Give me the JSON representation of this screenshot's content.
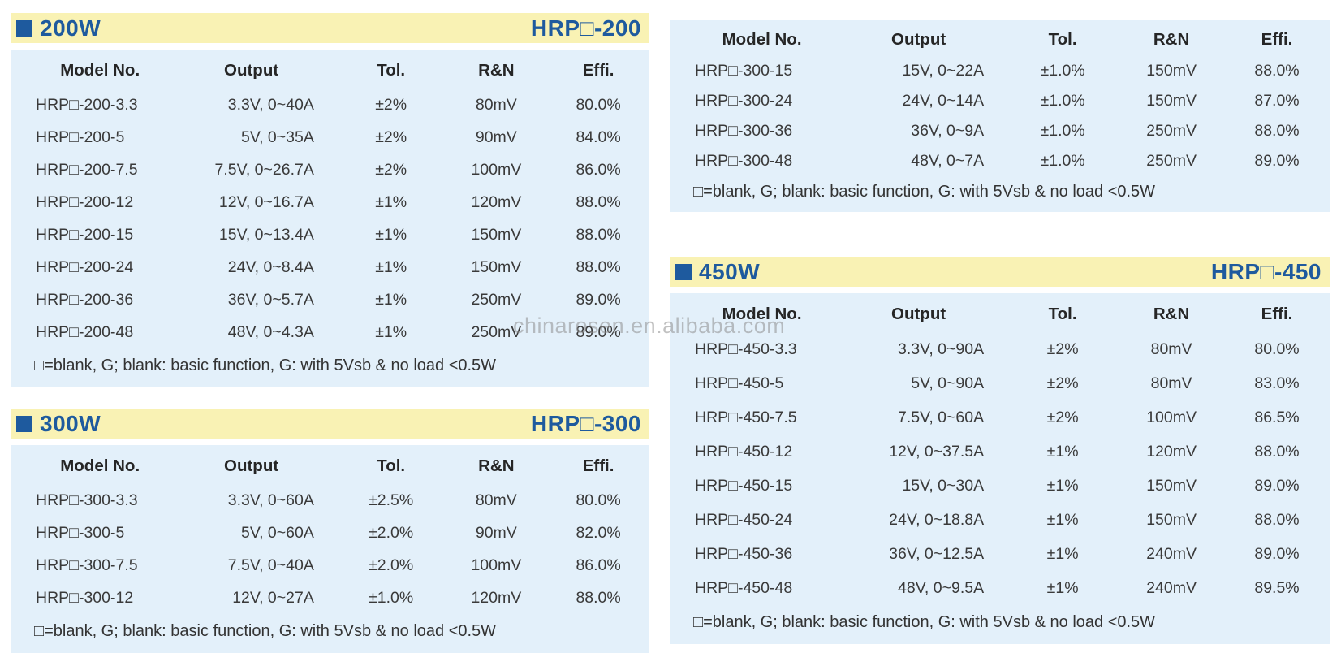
{
  "watermark": "chinarosen.en.alibaba.com",
  "colors": {
    "banner_background": "#f9f2b4",
    "banner_accent_blue": "#1e5a9e",
    "table_background": "#e3f0fa",
    "table_text": "#3a3a3a",
    "page_background": "#ffffff"
  },
  "columns": [
    "Model No.",
    "Output",
    "Tol.",
    "R&N",
    "Effi."
  ],
  "footnote": "□=blank, G;  blank: basic function, G: with 5Vsb & no load <0.5W",
  "tables": [
    {
      "banner": {
        "wattage": "200W",
        "series": "HRP□-200"
      },
      "rows": [
        [
          "HRP□-200-3.3",
          "3.3V, 0~40A",
          "±2%",
          "80mV",
          "80.0%"
        ],
        [
          "HRP□-200-5",
          "5V, 0~35A",
          "±2%",
          "90mV",
          "84.0%"
        ],
        [
          "HRP□-200-7.5",
          "7.5V, 0~26.7A",
          "±2%",
          "100mV",
          "86.0%"
        ],
        [
          "HRP□-200-12",
          "12V, 0~16.7A",
          "±1%",
          "120mV",
          "88.0%"
        ],
        [
          "HRP□-200-15",
          "15V, 0~13.4A",
          "±1%",
          "150mV",
          "88.0%"
        ],
        [
          "HRP□-200-24",
          "24V, 0~8.4A",
          "±1%",
          "150mV",
          "88.0%"
        ],
        [
          "HRP□-200-36",
          "36V, 0~5.7A",
          "±1%",
          "250mV",
          "89.0%"
        ],
        [
          "HRP□-200-48",
          "48V, 0~4.3A",
          "±1%",
          "250mV",
          "89.0%"
        ]
      ]
    },
    {
      "banner": {
        "wattage": "300W",
        "series": "HRP□-300"
      },
      "rows": [
        [
          "HRP□-300-3.3",
          "3.3V, 0~60A",
          "±2.5%",
          "80mV",
          "80.0%"
        ],
        [
          "HRP□-300-5",
          "5V, 0~60A",
          "±2.0%",
          "90mV",
          "82.0%"
        ],
        [
          "HRP□-300-7.5",
          "7.5V, 0~40A",
          "±2.0%",
          "100mV",
          "86.0%"
        ],
        [
          "HRP□-300-12",
          "12V, 0~27A",
          "±1.0%",
          "120mV",
          "88.0%"
        ]
      ]
    },
    {
      "banner": null,
      "rows": [
        [
          "HRP□-300-15",
          "15V, 0~22A",
          "±1.0%",
          "150mV",
          "88.0%"
        ],
        [
          "HRP□-300-24",
          "24V, 0~14A",
          "±1.0%",
          "150mV",
          "87.0%"
        ],
        [
          "HRP□-300-36",
          "36V, 0~9A",
          "±1.0%",
          "250mV",
          "88.0%"
        ],
        [
          "HRP□-300-48",
          "48V, 0~7A",
          "±1.0%",
          "250mV",
          "89.0%"
        ]
      ]
    },
    {
      "banner": {
        "wattage": "450W",
        "series": "HRP□-450"
      },
      "rows": [
        [
          "HRP□-450-3.3",
          "3.3V, 0~90A",
          "±2%",
          "80mV",
          "80.0%"
        ],
        [
          "HRP□-450-5",
          "5V, 0~90A",
          "±2%",
          "80mV",
          "83.0%"
        ],
        [
          "HRP□-450-7.5",
          "7.5V, 0~60A",
          "±2%",
          "100mV",
          "86.5%"
        ],
        [
          "HRP□-450-12",
          "12V, 0~37.5A",
          "±1%",
          "120mV",
          "88.0%"
        ],
        [
          "HRP□-450-15",
          "15V, 0~30A",
          "±1%",
          "150mV",
          "89.0%"
        ],
        [
          "HRP□-450-24",
          "24V, 0~18.8A",
          "±1%",
          "150mV",
          "88.0%"
        ],
        [
          "HRP□-450-36",
          "36V, 0~12.5A",
          "±1%",
          "240mV",
          "89.0%"
        ],
        [
          "HRP□-450-48",
          "48V, 0~9.5A",
          "±1%",
          "240mV",
          "89.5%"
        ]
      ]
    }
  ]
}
